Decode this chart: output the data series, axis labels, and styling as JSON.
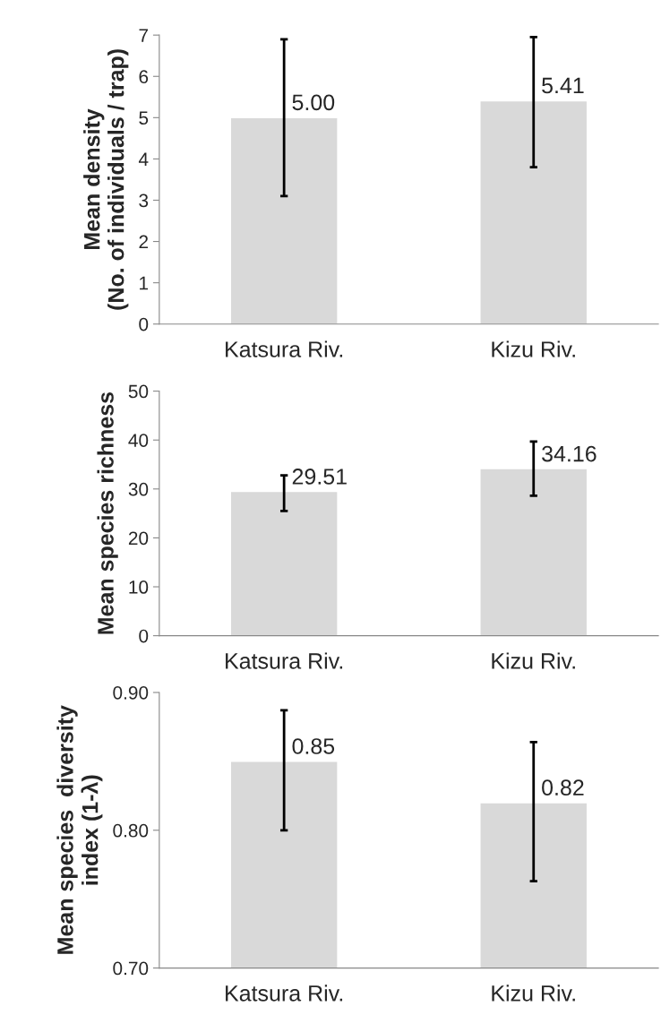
{
  "chart_data": [
    {
      "type": "bar",
      "categories": [
        "Katsura Riv.",
        "Kizu Riv."
      ],
      "values": [
        5.0,
        5.41
      ],
      "color": "#d9d9d9",
      "errors": [
        [
          3.1,
          6.9
        ],
        [
          3.8,
          6.95
        ]
      ],
      "value_labels": [
        "5.00",
        "5.41"
      ],
      "ylabel": "Mean density\n(No. of individuals / trap)",
      "ylim": [
        0,
        7
      ],
      "yticks": [
        0,
        1,
        2,
        3,
        4,
        5,
        6,
        7
      ],
      "grid": false,
      "legend": false
    },
    {
      "type": "bar",
      "categories": [
        "Katsura Riv.",
        "Kizu Riv."
      ],
      "values": [
        29.51,
        34.16
      ],
      "color": "#d9d9d9",
      "errors": [
        [
          25.5,
          32.8
        ],
        [
          28.6,
          39.7
        ]
      ],
      "value_labels": [
        "29.51",
        "34.16"
      ],
      "ylabel": "Mean species richness",
      "ylim": [
        0,
        50
      ],
      "yticks": [
        0,
        10,
        20,
        30,
        40,
        50
      ],
      "grid": false,
      "legend": false
    },
    {
      "type": "bar",
      "categories": [
        "Katsura Riv.",
        "Kizu Riv."
      ],
      "values": [
        0.85,
        0.82
      ],
      "color": "#d9d9d9",
      "errors": [
        [
          0.8,
          0.887
        ],
        [
          0.763,
          0.864
        ]
      ],
      "value_labels": [
        "0.85",
        "0.82"
      ],
      "ylabel": "Mean species  diversity\nindex (1-λ)",
      "ylim": [
        0.7,
        0.9
      ],
      "yticks": [
        {
          "value": 0.7,
          "label": "0.70"
        },
        {
          "value": 0.8,
          "label": "0.80"
        },
        {
          "value": 0.9,
          "label": "0.90"
        }
      ],
      "grid": false,
      "legend": false
    }
  ]
}
